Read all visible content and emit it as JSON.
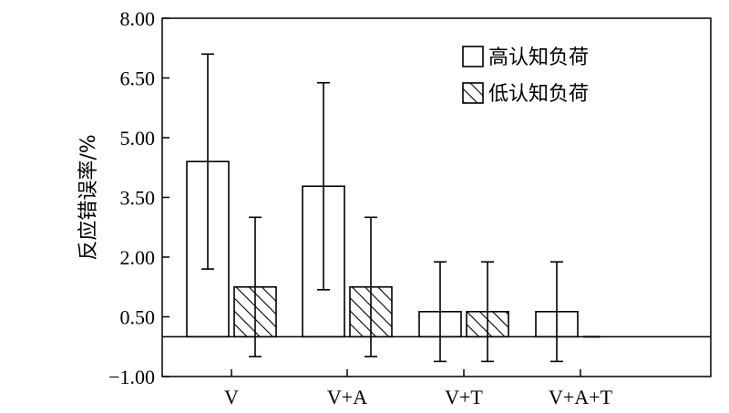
{
  "chart_data": {
    "type": "bar",
    "ylabel": "反应错误率/%",
    "xlabel": "",
    "categories": [
      "V",
      "V+A",
      "V+T",
      "V+A+T"
    ],
    "yticks": [
      "8.00",
      "6.50",
      "5.00",
      "3.50",
      "2.00",
      "0.50",
      "−1.00"
    ],
    "ytick_values": [
      8.0,
      6.5,
      5.0,
      3.5,
      2.0,
      0.5,
      -1.0
    ],
    "ylim": [
      -1.0,
      8.0
    ],
    "baseline": 0,
    "grid": false,
    "legend_position": "top-right",
    "series": [
      {
        "name": "高认知负荷",
        "pattern": "open",
        "values": [
          4.4,
          3.78,
          0.63,
          0.63
        ],
        "error": [
          2.7,
          2.6,
          1.25,
          1.25
        ]
      },
      {
        "name": "低认知负荷",
        "pattern": "hatched",
        "values": [
          1.25,
          1.25,
          0.63,
          0.0
        ],
        "error": [
          1.75,
          1.75,
          1.25,
          0.0
        ]
      }
    ]
  }
}
